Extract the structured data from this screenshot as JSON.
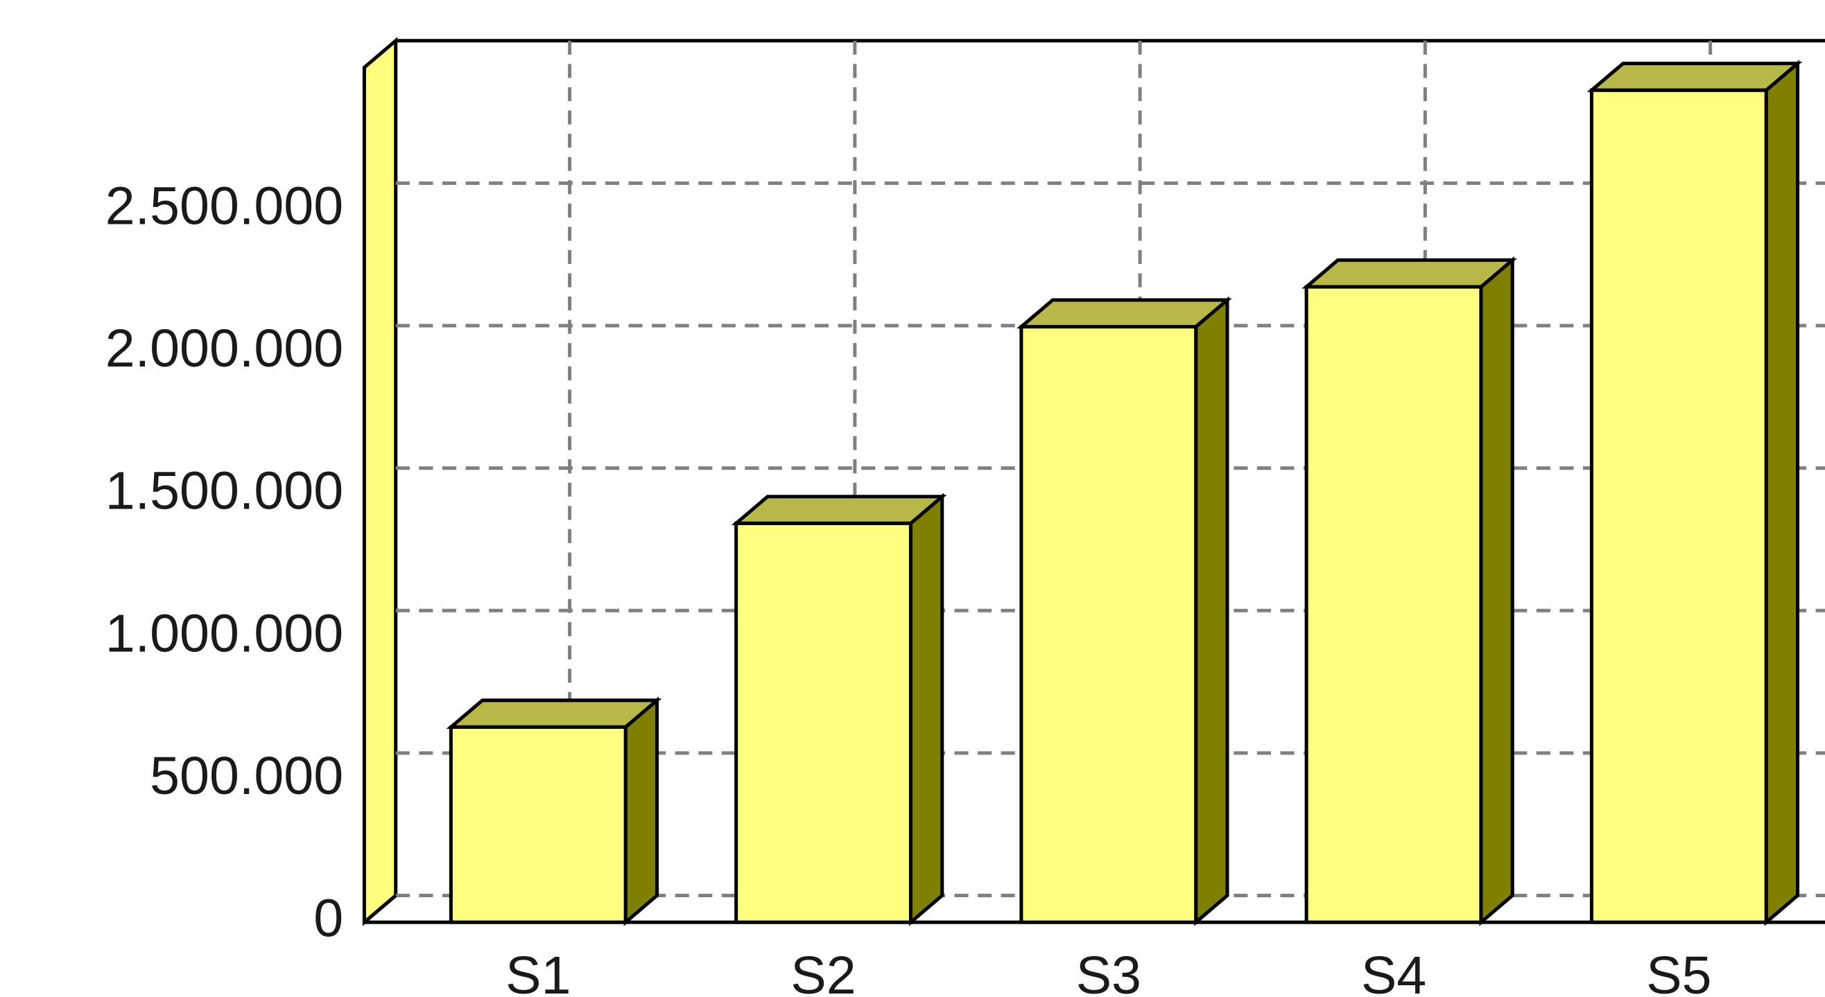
{
  "chart_data": {
    "type": "bar3d",
    "categories": [
      "S1",
      "S2",
      "S3",
      "S4",
      "S5"
    ],
    "values": [
      685000,
      1400000,
      2090000,
      2230000,
      2920000
    ],
    "color": "#ffff80",
    "ylim": [
      0,
      3000000
    ],
    "yticks": [
      0,
      {
        "value": 500000,
        "label": "500.000"
      },
      {
        "value": 1000000,
        "label": "1.000.000"
      },
      {
        "value": 1500000,
        "label": "1.500.000"
      },
      {
        "value": 2000000,
        "label": "2.000.000"
      },
      {
        "value": 2500000,
        "label": "2.500.000"
      }
    ],
    "grid": true
  }
}
